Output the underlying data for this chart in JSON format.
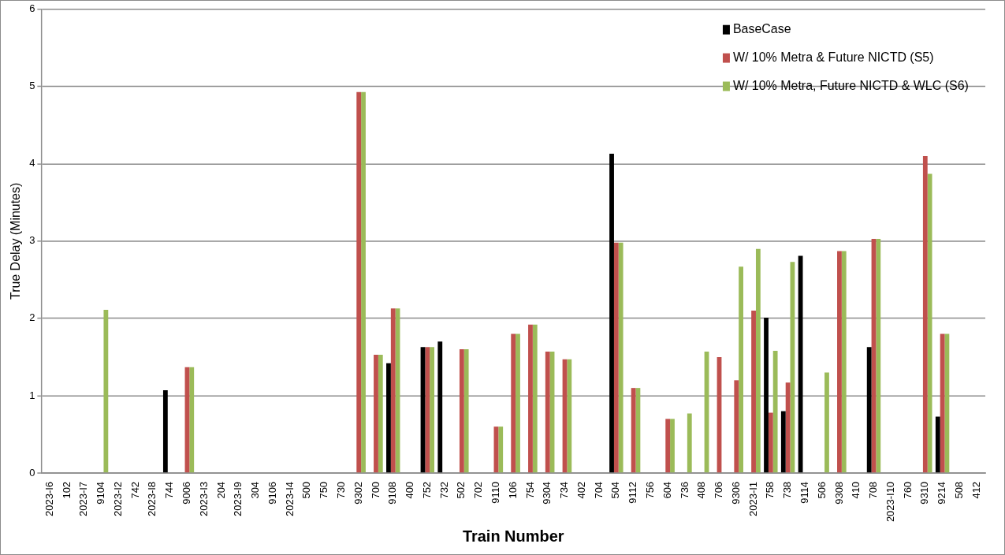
{
  "chart_data": {
    "type": "bar",
    "xlabel": "Train Number",
    "ylabel": "True Delay (Minutes)",
    "categories": [
      "2023-I6",
      "102",
      "2023-I7",
      "9104",
      "2023-I2",
      "742",
      "2023-I8",
      "744",
      "9006",
      "2023-I3",
      "204",
      "2023-I9",
      "304",
      "9106",
      "2023-I4",
      "500",
      "750",
      "730",
      "9302",
      "700",
      "9108",
      "400",
      "752",
      "732",
      "502",
      "702",
      "9110",
      "106",
      "754",
      "9304",
      "734",
      "402",
      "704",
      "504",
      "9112",
      "756",
      "604",
      "736",
      "408",
      "706",
      "9306",
      "2023-I1",
      "758",
      "738",
      "9114",
      "506",
      "9308",
      "410",
      "708",
      "2023-I10",
      "760",
      "9310",
      "9214",
      "508",
      "412"
    ],
    "series": [
      {
        "name": "BaseCase",
        "color": "#000000",
        "values": [
          null,
          null,
          null,
          null,
          null,
          null,
          null,
          1.07,
          null,
          null,
          null,
          null,
          null,
          null,
          null,
          null,
          null,
          null,
          null,
          null,
          1.42,
          null,
          1.63,
          1.7,
          null,
          null,
          null,
          null,
          null,
          null,
          null,
          null,
          null,
          4.13,
          null,
          null,
          null,
          null,
          null,
          null,
          null,
          null,
          2.01,
          0.8,
          2.81,
          null,
          null,
          null,
          1.63,
          null,
          null,
          null,
          0.73,
          null,
          null
        ]
      },
      {
        "name": "W/ 10% Metra & Future NICTD (S5)",
        "color": "#c0504d",
        "values": [
          null,
          null,
          null,
          null,
          null,
          null,
          null,
          null,
          1.37,
          null,
          null,
          null,
          null,
          null,
          null,
          null,
          null,
          null,
          4.93,
          1.53,
          2.13,
          null,
          1.63,
          null,
          1.6,
          null,
          0.6,
          1.8,
          1.92,
          1.57,
          1.47,
          null,
          null,
          2.98,
          1.1,
          null,
          0.7,
          null,
          null,
          1.5,
          1.2,
          2.1,
          0.78,
          1.17,
          null,
          null,
          2.87,
          null,
          3.03,
          null,
          null,
          4.1,
          1.8,
          null,
          null
        ]
      },
      {
        "name": "W/ 10% Metra, Future NICTD & WLC (S6)",
        "color": "#9bbb59",
        "values": [
          null,
          null,
          null,
          2.11,
          null,
          null,
          null,
          null,
          1.37,
          null,
          null,
          null,
          null,
          null,
          null,
          null,
          null,
          null,
          4.93,
          1.53,
          2.13,
          null,
          1.63,
          null,
          1.6,
          null,
          0.6,
          1.8,
          1.92,
          1.57,
          1.47,
          null,
          null,
          2.98,
          1.1,
          null,
          0.7,
          0.77,
          1.57,
          null,
          2.67,
          2.9,
          1.58,
          2.73,
          null,
          1.3,
          2.87,
          null,
          3.03,
          null,
          null,
          3.87,
          1.8,
          null,
          null
        ]
      }
    ],
    "ylim": [
      0,
      6
    ],
    "yticks": [
      0,
      1,
      2,
      3,
      4,
      5,
      6
    ],
    "grid": "y",
    "legend": "top right"
  }
}
